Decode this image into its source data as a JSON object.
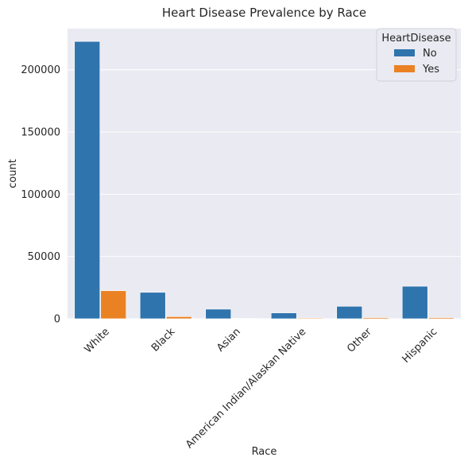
{
  "chart_data": {
    "type": "bar",
    "title": "Heart Disease Prevalence by Race",
    "xlabel": "Race",
    "ylabel": "count",
    "categories": [
      "White",
      "Black",
      "Asian",
      "American Indian/Alaskan Native",
      "Other",
      "Hispanic"
    ],
    "series": [
      {
        "name": "No",
        "values": [
          222700,
          21200,
          7700,
          4700,
          10000,
          26100
        ]
      },
      {
        "name": "Yes",
        "values": [
          22500,
          1700,
          300,
          600,
          900,
          900
        ]
      }
    ],
    "ylim": [
      0,
      233000
    ],
    "yticks": [
      0,
      50000,
      100000,
      150000,
      200000
    ],
    "ytick_labels": [
      "0",
      "50000",
      "100000",
      "150000",
      "200000"
    ],
    "grid": true,
    "legend": {
      "title": "HeartDisease",
      "placement": "top-right"
    },
    "colors": {
      "No": "#2f74ad",
      "Yes": "#ea8224",
      "plot_bg": "#eaeaf2",
      "grid": "#ffffff"
    }
  }
}
